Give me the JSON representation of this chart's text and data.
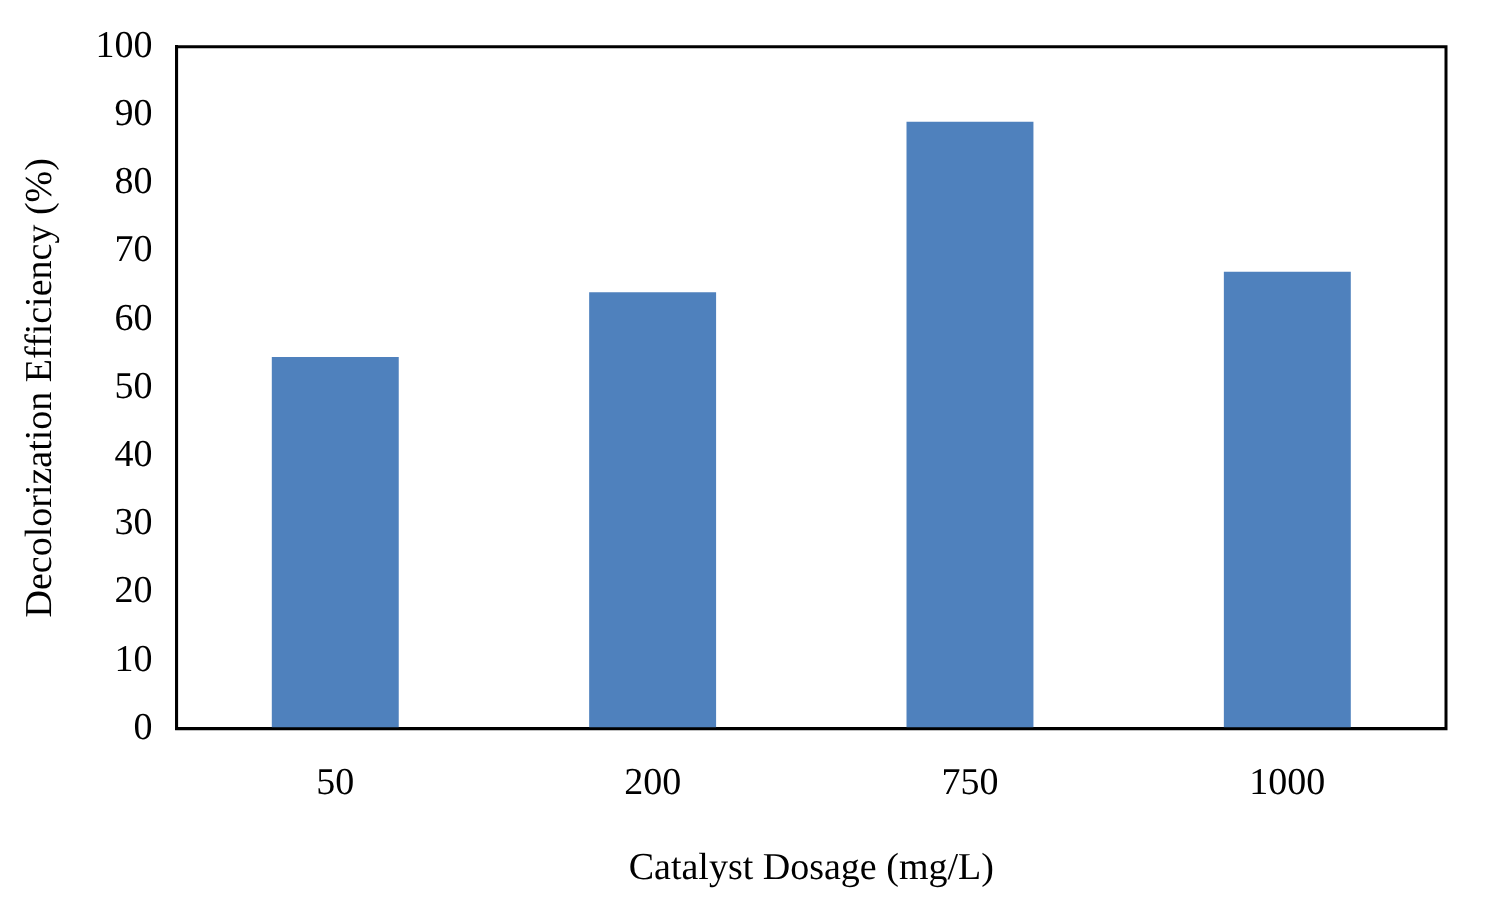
{
  "chart_data": {
    "type": "bar",
    "xlabel": "Catalyst Dosage (mg/L)",
    "ylabel": "Decolorization Efficiency (%)",
    "categories": [
      "50",
      "200",
      "750",
      "1000"
    ],
    "values": [
      54.5,
      64,
      89,
      67
    ],
    "color": "#4f81bd",
    "ylim": [
      0,
      100
    ],
    "yticks": [
      0,
      10,
      20,
      30,
      40,
      50,
      60,
      70,
      80,
      90,
      100
    ],
    "grid": false,
    "legend": false
  }
}
